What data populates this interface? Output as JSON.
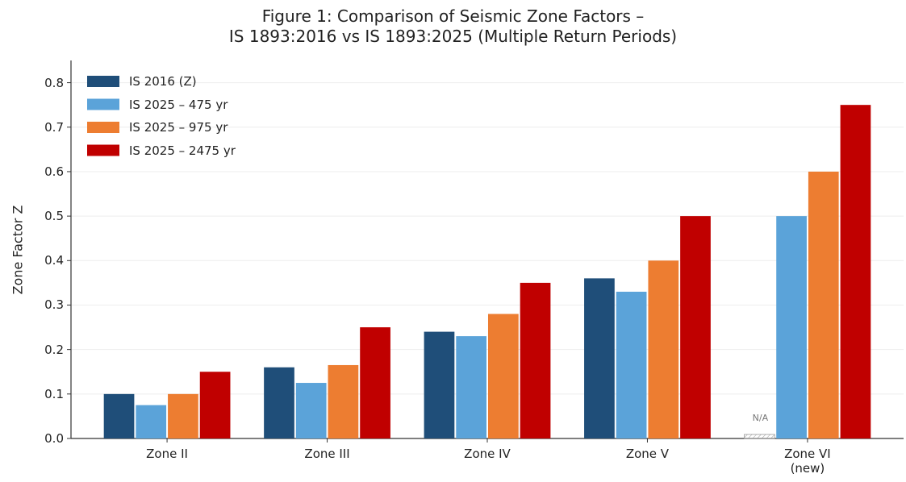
{
  "chart_data": {
    "type": "bar",
    "title": "Figure 1: Comparison of Seismic Zone Factors –\nIS 1893:2016 vs IS 1893:2025 (Multiple Return Periods)",
    "y_label": "Zone Factor Z",
    "categories": [
      "Zone II",
      "Zone III",
      "Zone IV",
      "Zone V",
      "Zone VI\n(new)"
    ],
    "series": [
      {
        "name": "IS 2016 (Z)",
        "color": "#1f4e79",
        "values": [
          0.1,
          0.16,
          0.24,
          0.36,
          null
        ]
      },
      {
        "name": "IS 2025 – 475 yr",
        "color": "#5ba3d9",
        "values": [
          0.075,
          0.125,
          0.23,
          0.33,
          0.5
        ]
      },
      {
        "name": "IS 2025 – 975 yr",
        "color": "#ed7d31",
        "values": [
          0.1,
          0.165,
          0.28,
          0.4,
          0.6
        ]
      },
      {
        "name": "IS 2025 – 2475 yr",
        "color": "#c00000",
        "values": [
          0.15,
          0.25,
          0.35,
          0.5,
          0.75
        ]
      }
    ],
    "annotation": "N/A",
    "ylim": [
      0,
      0.85
    ],
    "yticks": [
      {
        "value": 0,
        "label": "0.0"
      },
      0.1,
      0.2,
      0.3,
      0.4,
      0.5,
      0.6,
      0.7,
      0.8
    ],
    "grid": true,
    "legend": "upper left"
  }
}
